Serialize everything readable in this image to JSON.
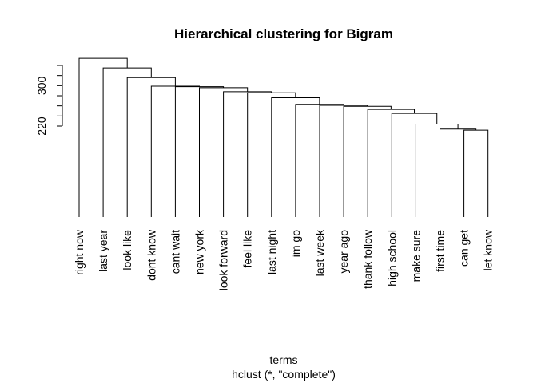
{
  "chart_data": {
    "type": "dendrogram",
    "title": "Hierarchical clustering for Bigram",
    "xlabel": "terms",
    "sublabel": "hclust (*, \"complete\")",
    "ylabel": "",
    "y_ticks": [
      220,
      240,
      260,
      280,
      300,
      320,
      340
    ],
    "y_tick_labels": [
      "220",
      "300"
    ],
    "leaves": [
      "right now",
      "last year",
      "look like",
      "dont know",
      "cant wait",
      "new york",
      "look forward",
      "feel like",
      "last night",
      "im go",
      "last week",
      "year ago",
      "thank follow",
      "high school",
      "make sure",
      "first time",
      "can get",
      "let know"
    ],
    "leaf_baseline": 0,
    "merges": [
      {
        "left": 16,
        "right": 17,
        "height": 212
      },
      {
        "left": 15,
        "right": "m1",
        "height": 214
      },
      {
        "left": 14,
        "right": "m2",
        "height": 224
      },
      {
        "left": 13,
        "right": "m3",
        "height": 245
      },
      {
        "left": 12,
        "right": "m4",
        "height": 253
      },
      {
        "left": 11,
        "right": "m5",
        "height": 259
      },
      {
        "left": 10,
        "right": "m6",
        "height": 261
      },
      {
        "left": 9,
        "right": "m7",
        "height": 263
      },
      {
        "left": 8,
        "right": "m8",
        "height": 276
      },
      {
        "left": 7,
        "right": "m9",
        "height": 286
      },
      {
        "left": 6,
        "right": "m10",
        "height": 288
      },
      {
        "left": 5,
        "right": "m11",
        "height": 296
      },
      {
        "left": 4,
        "right": "m12",
        "height": 298
      },
      {
        "left": 3,
        "right": "m13",
        "height": 299
      },
      {
        "left": 2,
        "right": "m14",
        "height": 316
      },
      {
        "left": 1,
        "right": "m15",
        "height": 335
      },
      {
        "left": 0,
        "right": "m16",
        "height": 354
      }
    ]
  }
}
